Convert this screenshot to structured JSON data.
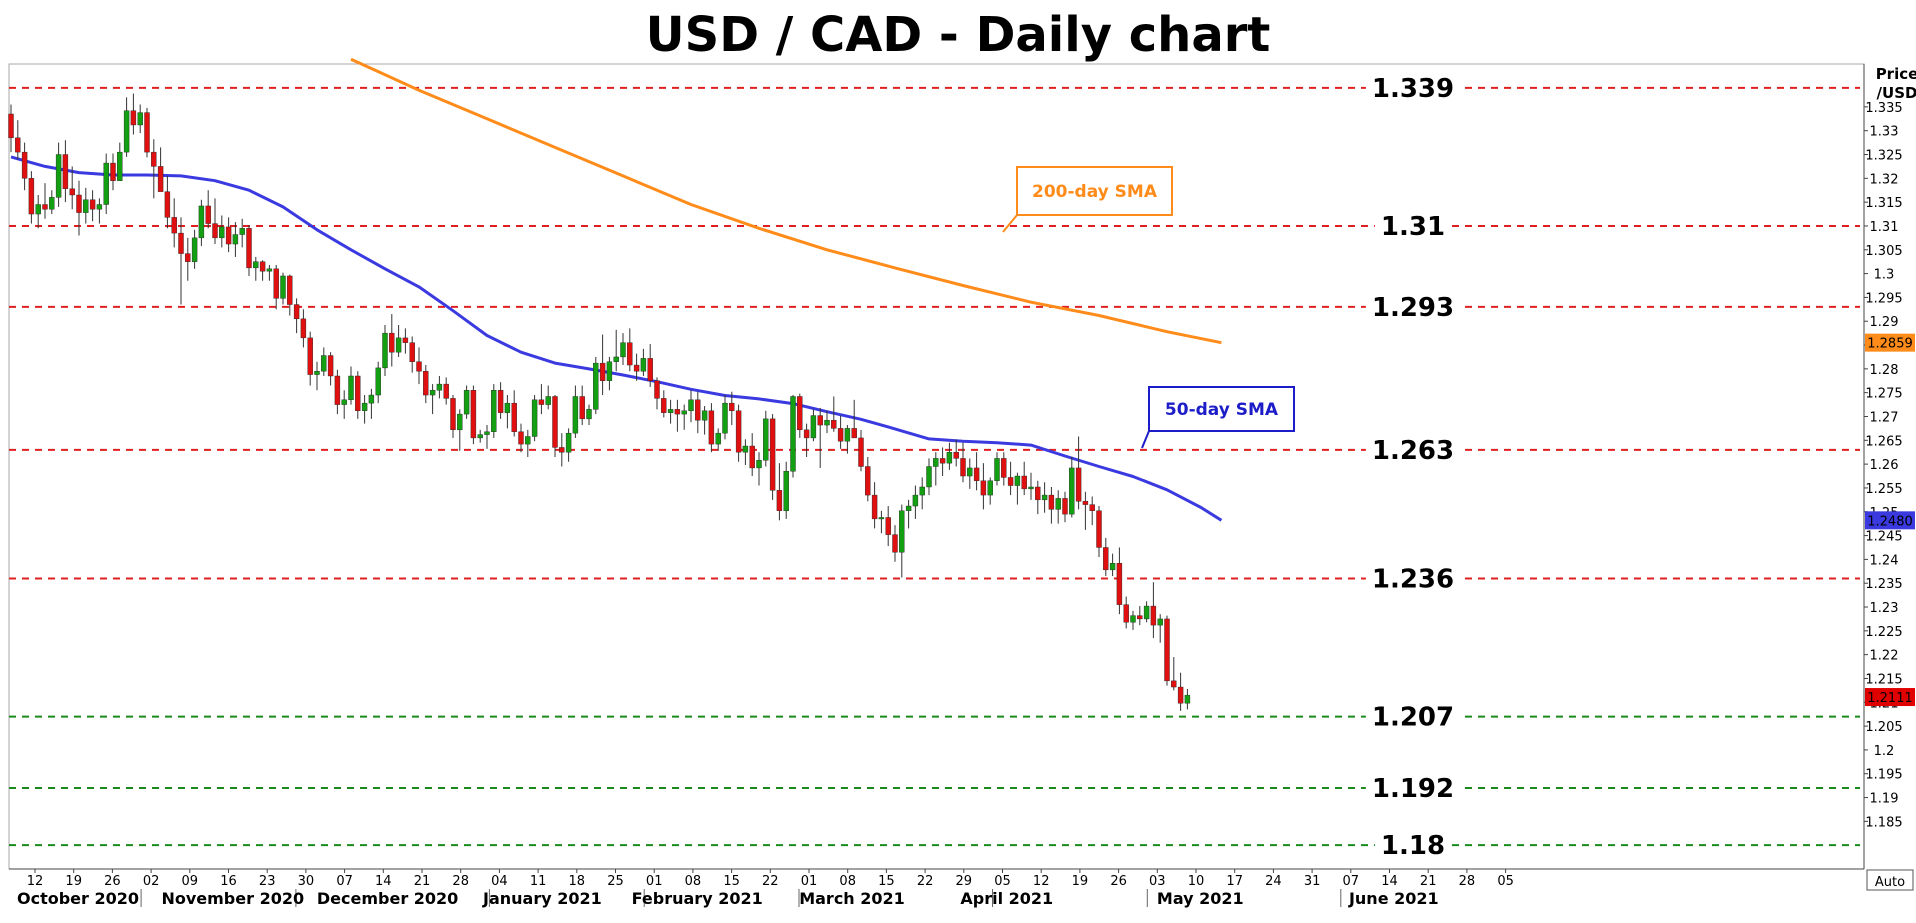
{
  "chart_data": {
    "type": "candlestick",
    "title": "USD / CAD - Daily chart",
    "ylabel": "Price\n/USD",
    "ylabel_lines": [
      "Price",
      "/USD"
    ],
    "autoscale_label": "Auto",
    "ylim": [
      1.175,
      1.344
    ],
    "y_ticks": [
      "1.335",
      "1.33",
      "1.325",
      "1.32",
      "1.315",
      "1.31",
      "1.305",
      "1.3",
      "1.295",
      "1.29",
      "1.285",
      "1.28",
      "1.275",
      "1.27",
      "1.265",
      "1.26",
      "1.255",
      "1.25",
      "1.245",
      "1.24",
      "1.235",
      "1.23",
      "1.225",
      "1.22",
      "1.215",
      "1.21",
      "1.205",
      "1.2",
      "1.195",
      "1.19",
      "1.185"
    ],
    "x_ticks": [
      "12",
      "19",
      "26",
      "02",
      "09",
      "16",
      "23",
      "30",
      "07",
      "14",
      "21",
      "28",
      "04",
      "11",
      "18",
      "25",
      "01",
      "08",
      "15",
      "22",
      "01",
      "08",
      "15",
      "22",
      "29",
      "05",
      "12",
      "19",
      "26",
      "03",
      "10",
      "17",
      "24",
      "31",
      "07",
      "14",
      "21",
      "28",
      "05"
    ],
    "months": [
      "October 2020",
      "November 2020",
      "December 2020",
      "January 2021",
      "February 2021",
      "March 2021",
      "April 2021",
      "May 2021",
      "June 2021"
    ],
    "month_label_ticks": [
      0,
      4,
      8,
      12,
      16,
      20,
      24,
      29,
      34
    ],
    "month_sep_ticks": [
      3,
      7,
      12,
      16,
      20,
      25,
      29,
      34
    ],
    "levels": [
      {
        "value": 1.339,
        "label": "1.339",
        "color": "#e02020"
      },
      {
        "value": 1.31,
        "label": "1.31",
        "color": "#e02020"
      },
      {
        "value": 1.293,
        "label": "1.293",
        "color": "#e02020"
      },
      {
        "value": 1.263,
        "label": "1.263",
        "color": "#e02020"
      },
      {
        "value": 1.236,
        "label": "1.236",
        "color": "#e02020"
      },
      {
        "value": 1.207,
        "label": "1.207",
        "color": "#1a8a1a"
      },
      {
        "value": 1.192,
        "label": "1.192",
        "color": "#1a8a1a"
      },
      {
        "value": 1.18,
        "label": "1.18",
        "color": "#1a8a1a"
      }
    ],
    "series": [
      {
        "name": "200-day SMA",
        "color": "#ff8c1a",
        "last_value": "1.2859",
        "x": [
          50,
          60,
          70,
          80,
          90,
          100,
          110,
          120,
          130,
          140,
          150,
          160,
          170,
          178
        ],
        "y": [
          1.345,
          1.3385,
          1.3325,
          1.3265,
          1.3205,
          1.3145,
          1.3095,
          1.305,
          1.3012,
          1.2975,
          1.294,
          1.2912,
          1.2878,
          1.2855
        ]
      },
      {
        "name": "50-day SMA",
        "color": "#3a3ae0",
        "last_value": "1.2480",
        "x": [
          0,
          5,
          10,
          15,
          20,
          25,
          30,
          35,
          40,
          45,
          50,
          55,
          60,
          65,
          70,
          75,
          80,
          85,
          90,
          95,
          100,
          105,
          110,
          115,
          120,
          125,
          130,
          135,
          140,
          145,
          150,
          155,
          160,
          165,
          170,
          175,
          178
        ],
        "y": [
          1.3245,
          1.3225,
          1.3212,
          1.3207,
          1.3207,
          1.3205,
          1.3195,
          1.3175,
          1.314,
          1.3092,
          1.305,
          1.301,
          1.2972,
          1.2922,
          1.287,
          1.2835,
          1.2812,
          1.28,
          1.2787,
          1.2773,
          1.2757,
          1.2744,
          1.2737,
          1.2727,
          1.271,
          1.2694,
          1.2674,
          1.2653,
          1.2648,
          1.2645,
          1.264,
          1.2617,
          1.2595,
          1.2574,
          1.2546,
          1.2509,
          1.2482
        ]
      }
    ],
    "annotations": [
      {
        "text": "200-day SMA",
        "color": "#ff8c1a",
        "series": "200-day SMA"
      },
      {
        "text": "50-day SMA",
        "color": "#1c1cc8",
        "series": "50-day SMA"
      }
    ],
    "last_price": {
      "value": 1.2111,
      "label": "1.2111",
      "color": "#e00000"
    },
    "candle_colors": {
      "up": "#12a012",
      "down": "#e01010"
    },
    "ohlc": [
      [
        1.3335,
        1.3355,
        1.3255,
        1.3285
      ],
      [
        1.3285,
        1.3322,
        1.324,
        1.3255
      ],
      [
        1.3255,
        1.3275,
        1.3175,
        1.32
      ],
      [
        1.32,
        1.3215,
        1.3105,
        1.3125
      ],
      [
        1.3125,
        1.3165,
        1.3095,
        1.3145
      ],
      [
        1.3145,
        1.319,
        1.3115,
        1.3135
      ],
      [
        1.3135,
        1.3175,
        1.3125,
        1.316
      ],
      [
        1.316,
        1.3275,
        1.314,
        1.325
      ],
      [
        1.325,
        1.328,
        1.315,
        1.3178
      ],
      [
        1.3178,
        1.3225,
        1.3135,
        1.3165
      ],
      [
        1.3165,
        1.3195,
        1.308,
        1.3128
      ],
      [
        1.3128,
        1.318,
        1.3105,
        1.3155
      ],
      [
        1.3155,
        1.3175,
        1.311,
        1.3135
      ],
      [
        1.3135,
        1.3158,
        1.3105,
        1.3145
      ],
      [
        1.3145,
        1.3252,
        1.3125,
        1.3232
      ],
      [
        1.3232,
        1.3252,
        1.3175,
        1.3195
      ],
      [
        1.3195,
        1.3275,
        1.3195,
        1.3255
      ],
      [
        1.3255,
        1.337,
        1.3245,
        1.3342
      ],
      [
        1.3342,
        1.3378,
        1.3292,
        1.3312
      ],
      [
        1.3312,
        1.3355,
        1.3295,
        1.3338
      ],
      [
        1.3338,
        1.3348,
        1.3244,
        1.3255
      ],
      [
        1.3255,
        1.3282,
        1.3158,
        1.3225
      ],
      [
        1.3225,
        1.3265,
        1.318,
        1.3172
      ],
      [
        1.3172,
        1.3205,
        1.3095,
        1.3118
      ],
      [
        1.3118,
        1.3158,
        1.3055,
        1.3085
      ],
      [
        1.3085,
        1.3118,
        1.2935,
        1.3042
      ],
      [
        1.3042,
        1.3075,
        1.2985,
        1.3025
      ],
      [
        1.3025,
        1.3092,
        1.301,
        1.3075
      ],
      [
        1.3075,
        1.3155,
        1.3058,
        1.3142
      ],
      [
        1.3142,
        1.3175,
        1.3095,
        1.3105
      ],
      [
        1.3105,
        1.3158,
        1.3062,
        1.3075
      ],
      [
        1.3075,
        1.3122,
        1.3055,
        1.3098
      ],
      [
        1.3098,
        1.3118,
        1.3045,
        1.3062
      ],
      [
        1.3062,
        1.3108,
        1.3035,
        1.3082
      ],
      [
        1.3082,
        1.3115,
        1.3055,
        1.3095
      ],
      [
        1.3095,
        1.3102,
        1.2995,
        1.3012
      ],
      [
        1.3012,
        1.3035,
        1.2985,
        1.3025
      ],
      [
        1.3025,
        1.3028,
        1.2985,
        1.3005
      ],
      [
        1.3005,
        1.3018,
        1.2985,
        1.301
      ],
      [
        1.301,
        1.3018,
        1.2925,
        1.2948
      ],
      [
        1.2948,
        1.3002,
        1.2935,
        1.2995
      ],
      [
        1.2995,
        1.2998,
        1.2912,
        1.2935
      ],
      [
        1.2935,
        1.2948,
        1.2875,
        1.2905
      ],
      [
        1.2905,
        1.2925,
        1.2845,
        1.2865
      ],
      [
        1.2865,
        1.2878,
        1.2765,
        1.2788
      ],
      [
        1.2788,
        1.2815,
        1.2755,
        1.2795
      ],
      [
        1.2795,
        1.2845,
        1.2785,
        1.2828
      ],
      [
        1.2828,
        1.2835,
        1.2765,
        1.2785
      ],
      [
        1.2785,
        1.2798,
        1.2705,
        1.2725
      ],
      [
        1.2725,
        1.2755,
        1.2695,
        1.2735
      ],
      [
        1.2735,
        1.2805,
        1.2725,
        1.2785
      ],
      [
        1.2785,
        1.2795,
        1.2695,
        1.2712
      ],
      [
        1.2712,
        1.2745,
        1.2685,
        1.2728
      ],
      [
        1.2728,
        1.2758,
        1.2695,
        1.2745
      ],
      [
        1.2745,
        1.2815,
        1.2728,
        1.2802
      ],
      [
        1.2802,
        1.2892,
        1.2785,
        1.2875
      ],
      [
        1.2875,
        1.2915,
        1.2805,
        1.2835
      ],
      [
        1.2835,
        1.2892,
        1.2825,
        1.2865
      ],
      [
        1.2865,
        1.2885,
        1.2832,
        1.2855
      ],
      [
        1.2855,
        1.2868,
        1.2792,
        1.2815
      ],
      [
        1.2815,
        1.2845,
        1.2768,
        1.2795
      ],
      [
        1.2795,
        1.2808,
        1.2728,
        1.2745
      ],
      [
        1.2745,
        1.2768,
        1.2705,
        1.2755
      ],
      [
        1.2755,
        1.2785,
        1.2738,
        1.2768
      ],
      [
        1.2768,
        1.2782,
        1.2725,
        1.2738
      ],
      [
        1.2738,
        1.2745,
        1.2655,
        1.2672
      ],
      [
        1.2672,
        1.2715,
        1.2628,
        1.2705
      ],
      [
        1.2705,
        1.2765,
        1.2695,
        1.2755
      ],
      [
        1.2755,
        1.2765,
        1.2642,
        1.2655
      ],
      [
        1.2655,
        1.2672,
        1.2645,
        1.2662
      ],
      [
        1.2662,
        1.2682,
        1.2632,
        1.2668
      ],
      [
        1.2668,
        1.2768,
        1.2655,
        1.2755
      ],
      [
        1.2755,
        1.2772,
        1.2695,
        1.2708
      ],
      [
        1.2708,
        1.2745,
        1.2675,
        1.2728
      ],
      [
        1.2728,
        1.2755,
        1.2658,
        1.2668
      ],
      [
        1.2668,
        1.2685,
        1.2625,
        1.2642
      ],
      [
        1.2642,
        1.2672,
        1.2615,
        1.2658
      ],
      [
        1.2658,
        1.2745,
        1.2648,
        1.2735
      ],
      [
        1.2735,
        1.2768,
        1.2705,
        1.2725
      ],
      [
        1.2725,
        1.2765,
        1.2715,
        1.2742
      ],
      [
        1.2742,
        1.2745,
        1.2615,
        1.2635
      ],
      [
        1.2635,
        1.2665,
        1.2595,
        1.2625
      ],
      [
        1.2625,
        1.2675,
        1.2605,
        1.2665
      ],
      [
        1.2665,
        1.2765,
        1.2655,
        1.2742
      ],
      [
        1.2742,
        1.2765,
        1.2682,
        1.2695
      ],
      [
        1.2695,
        1.2725,
        1.2682,
        1.2715
      ],
      [
        1.2715,
        1.2825,
        1.2705,
        1.2812
      ],
      [
        1.2812,
        1.2872,
        1.2745,
        1.2775
      ],
      [
        1.2775,
        1.2825,
        1.2755,
        1.2815
      ],
      [
        1.2815,
        1.2882,
        1.2795,
        1.2825
      ],
      [
        1.2825,
        1.2875,
        1.2808,
        1.2855
      ],
      [
        1.2855,
        1.2885,
        1.2795,
        1.2808
      ],
      [
        1.2808,
        1.2832,
        1.2775,
        1.2795
      ],
      [
        1.2795,
        1.2842,
        1.2785,
        1.2822
      ],
      [
        1.2822,
        1.2852,
        1.2762,
        1.2775
      ],
      [
        1.2775,
        1.2782,
        1.2715,
        1.2738
      ],
      [
        1.2738,
        1.2755,
        1.2698,
        1.2708
      ],
      [
        1.2708,
        1.2735,
        1.2685,
        1.2715
      ],
      [
        1.2715,
        1.2735,
        1.2668,
        1.2705
      ],
      [
        1.2705,
        1.2725,
        1.2672,
        1.2712
      ],
      [
        1.2712,
        1.2755,
        1.2688,
        1.2735
      ],
      [
        1.2735,
        1.2752,
        1.2665,
        1.2692
      ],
      [
        1.2692,
        1.2722,
        1.2662,
        1.2712
      ],
      [
        1.2712,
        1.2728,
        1.2625,
        1.2642
      ],
      [
        1.2642,
        1.2675,
        1.2628,
        1.2665
      ],
      [
        1.2665,
        1.2745,
        1.2652,
        1.2728
      ],
      [
        1.2728,
        1.2752,
        1.2682,
        1.2712
      ],
      [
        1.2712,
        1.2725,
        1.2605,
        1.2625
      ],
      [
        1.2625,
        1.2652,
        1.2598,
        1.2638
      ],
      [
        1.2638,
        1.2665,
        1.2575,
        1.2592
      ],
      [
        1.2592,
        1.2625,
        1.2555,
        1.2608
      ],
      [
        1.2608,
        1.2712,
        1.2595,
        1.2695
      ],
      [
        1.2695,
        1.2705,
        1.2525,
        1.2545
      ],
      [
        1.2545,
        1.2602,
        1.2482,
        1.2502
      ],
      [
        1.2502,
        1.2605,
        1.2485,
        1.2585
      ],
      [
        1.2585,
        1.2745,
        1.2572,
        1.2742
      ],
      [
        1.2742,
        1.2748,
        1.2655,
        1.2672
      ],
      [
        1.2672,
        1.2685,
        1.2615,
        1.2655
      ],
      [
        1.2655,
        1.2715,
        1.2648,
        1.2702
      ],
      [
        1.2702,
        1.2718,
        1.2592,
        1.2682
      ],
      [
        1.2682,
        1.2712,
        1.2665,
        1.2692
      ],
      [
        1.2692,
        1.2742,
        1.2668,
        1.2675
      ],
      [
        1.2675,
        1.2702,
        1.2632,
        1.2648
      ],
      [
        1.2648,
        1.2682,
        1.2622,
        1.2675
      ],
      [
        1.2675,
        1.2735,
        1.2662,
        1.2655
      ],
      [
        1.2655,
        1.2672,
        1.2585,
        1.2595
      ],
      [
        1.2595,
        1.2615,
        1.2522,
        1.2535
      ],
      [
        1.2535,
        1.2562,
        1.2465,
        1.2485
      ],
      [
        1.2485,
        1.2502,
        1.2455,
        1.2488
      ],
      [
        1.2488,
        1.2512,
        1.2428,
        1.2452
      ],
      [
        1.2452,
        1.2472,
        1.2395,
        1.2415
      ],
      [
        1.2415,
        1.2515,
        1.2362,
        1.2502
      ],
      [
        1.2502,
        1.2525,
        1.2465,
        1.2512
      ],
      [
        1.2512,
        1.2555,
        1.2485,
        1.2535
      ],
      [
        1.2535,
        1.2572,
        1.2505,
        1.2552
      ],
      [
        1.2552,
        1.2612,
        1.2535,
        1.2595
      ],
      [
        1.2595,
        1.2625,
        1.2555,
        1.2612
      ],
      [
        1.2612,
        1.2635,
        1.2575,
        1.2602
      ],
      [
        1.2602,
        1.2645,
        1.2588,
        1.2625
      ],
      [
        1.2625,
        1.2652,
        1.2595,
        1.2612
      ],
      [
        1.2612,
        1.2645,
        1.2562,
        1.2575
      ],
      [
        1.2575,
        1.2612,
        1.2548,
        1.2592
      ],
      [
        1.2592,
        1.2625,
        1.2545,
        1.2565
      ],
      [
        1.2565,
        1.2602,
        1.2505,
        1.2535
      ],
      [
        1.2535,
        1.2572,
        1.2515,
        1.2565
      ],
      [
        1.2565,
        1.2625,
        1.2555,
        1.2612
      ],
      [
        1.2612,
        1.2625,
        1.2555,
        1.2572
      ],
      [
        1.2572,
        1.2605,
        1.2535,
        1.2555
      ],
      [
        1.2555,
        1.2582,
        1.2515,
        1.2575
      ],
      [
        1.2575,
        1.2605,
        1.2535,
        1.2548
      ],
      [
        1.2548,
        1.2582,
        1.2525,
        1.2552
      ],
      [
        1.2552,
        1.2565,
        1.2495,
        1.2525
      ],
      [
        1.2525,
        1.2562,
        1.2498,
        1.2535
      ],
      [
        1.2535,
        1.2552,
        1.2475,
        1.2505
      ],
      [
        1.2505,
        1.2545,
        1.2475,
        1.2528
      ],
      [
        1.2528,
        1.2542,
        1.2478,
        1.2495
      ],
      [
        1.2495,
        1.2615,
        1.2488,
        1.2592
      ],
      [
        1.2592,
        1.2658,
        1.2505,
        1.2522
      ],
      [
        1.2522,
        1.2542,
        1.2462,
        1.2515
      ],
      [
        1.2515,
        1.2532,
        1.2472,
        1.2502
      ],
      [
        1.2502,
        1.2512,
        1.2405,
        1.2425
      ],
      [
        1.2425,
        1.2445,
        1.2365,
        1.2378
      ],
      [
        1.2378,
        1.2412,
        1.2365,
        1.2392
      ],
      [
        1.2392,
        1.2425,
        1.2285,
        1.2305
      ],
      [
        1.2305,
        1.2322,
        1.2255,
        1.2268
      ],
      [
        1.2268,
        1.2292,
        1.2252,
        1.2282
      ],
      [
        1.2282,
        1.2302,
        1.2262,
        1.2275
      ],
      [
        1.2275,
        1.2312,
        1.2268,
        1.2302
      ],
      [
        1.2302,
        1.2352,
        1.2235,
        1.2262
      ],
      [
        1.2262,
        1.2285,
        1.2225,
        1.2275
      ],
      [
        1.2275,
        1.2282,
        1.2135,
        1.2145
      ],
      [
        1.2145,
        1.2195,
        1.2125,
        1.2132
      ],
      [
        1.2132,
        1.2162,
        1.2082,
        1.2098
      ],
      [
        1.2098,
        1.2128,
        1.2085,
        1.2115
      ]
    ]
  }
}
